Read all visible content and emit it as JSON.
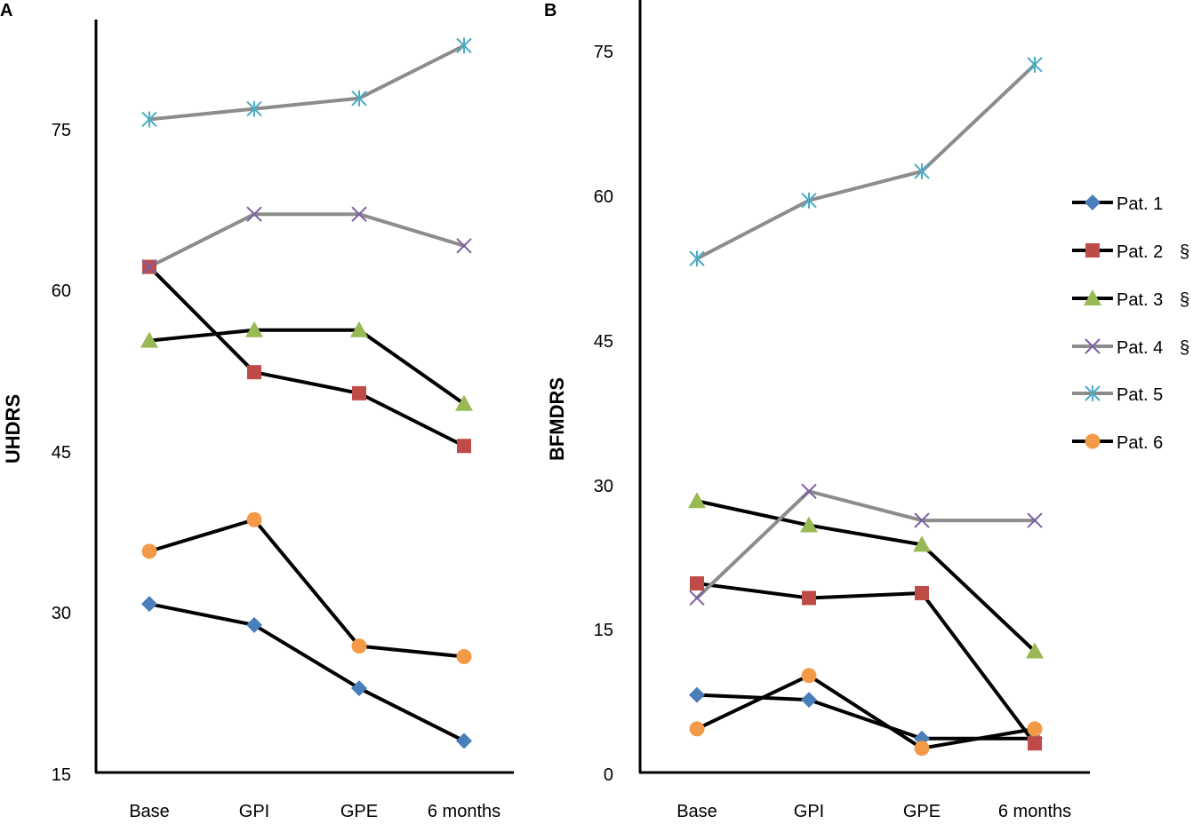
{
  "chart_data": [
    {
      "panel_label": "A",
      "type": "line",
      "ylabel": "UHDRS",
      "xlabel": "",
      "categories": [
        "Base",
        "GPI",
        "GPE",
        "6 months"
      ],
      "ylim": [
        15,
        87
      ],
      "yticks": [
        "15",
        "30",
        "45",
        "60",
        "75"
      ],
      "grid": false,
      "series": [
        {
          "name": "Pat. 1",
          "values": [
            31,
            29,
            23,
            18
          ]
        },
        {
          "name": "Pat. 2",
          "values": [
            63,
            53,
            51,
            46
          ]
        },
        {
          "name": "Pat. 3",
          "values": [
            56,
            57,
            57,
            50
          ]
        },
        {
          "name": "Pat. 4",
          "values": [
            63,
            68,
            68,
            65
          ]
        },
        {
          "name": "Pat. 5",
          "values": [
            77,
            78,
            79,
            84
          ]
        },
        {
          "name": "Pat. 6",
          "values": [
            36,
            39,
            27,
            26
          ]
        }
      ]
    },
    {
      "panel_label": "B",
      "type": "line",
      "ylabel": "BFMDRS",
      "xlabel": "",
      "categories": [
        "Base",
        "GPI",
        "GPE",
        "6 months"
      ],
      "ylim": [
        0,
        80
      ],
      "yticks": [
        "0",
        "15",
        "30",
        "45",
        "60",
        "75"
      ],
      "grid": false,
      "series": [
        {
          "name": "Pat. 1",
          "values": [
            8,
            7.5,
            3.5,
            3.5
          ]
        },
        {
          "name": "Pat. 2",
          "values": [
            19.5,
            18,
            18.5,
            3
          ]
        },
        {
          "name": "Pat. 3",
          "values": [
            28,
            25.5,
            23.5,
            12.5
          ]
        },
        {
          "name": "Pat. 4",
          "values": [
            18,
            29,
            26,
            26
          ]
        },
        {
          "name": "Pat. 5",
          "values": [
            53,
            59,
            62,
            73
          ]
        },
        {
          "name": "Pat. 6",
          "values": [
            4.5,
            10,
            2.5,
            4.5
          ]
        }
      ]
    }
  ],
  "legend": {
    "placement": "right",
    "items": [
      {
        "label": "Pat. 1",
        "note": ""
      },
      {
        "label": "Pat. 2",
        "note": "§"
      },
      {
        "label": "Pat. 3",
        "note": "§"
      },
      {
        "label": "Pat. 4",
        "note": "§"
      },
      {
        "label": "Pat. 5",
        "note": ""
      },
      {
        "label": "Pat. 6",
        "note": ""
      }
    ]
  },
  "styles": {
    "line_colors": [
      "#000000",
      "#000000",
      "#000000",
      "#8c8c8c",
      "#8c8c8c",
      "#000000"
    ],
    "markers": [
      "diamond",
      "square",
      "triangle",
      "x",
      "asterisk",
      "circle"
    ],
    "marker_colors": [
      "#4a7ebb",
      "#be4b48",
      "#98b954",
      "#7d5fa0",
      "#4aacc5",
      "#f39a48"
    ]
  }
}
